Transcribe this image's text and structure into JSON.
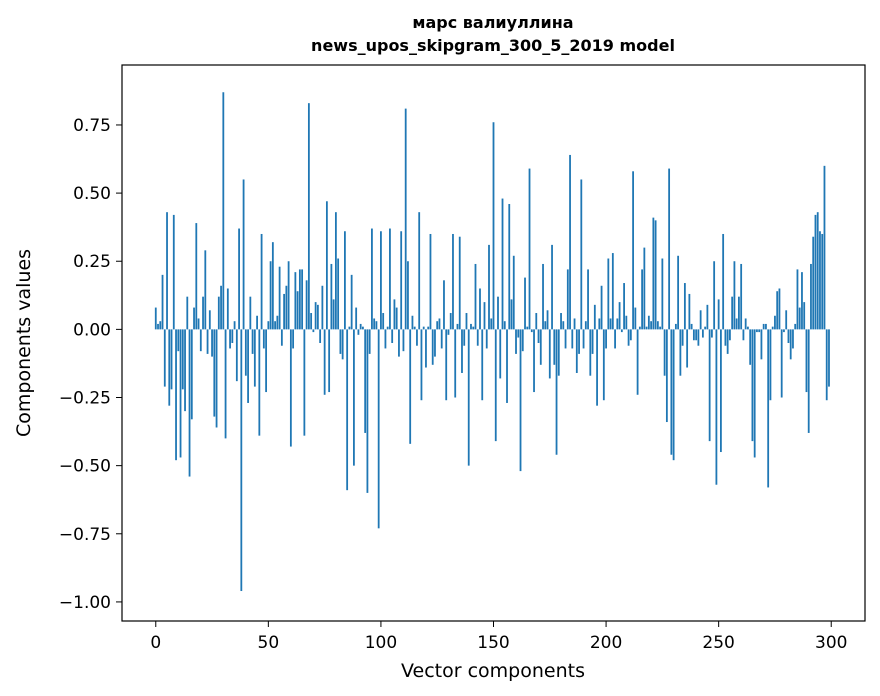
{
  "chart_data": {
    "type": "bar",
    "title_line1": "марс валиуллина",
    "title_line2": "news_upos_skipgram_300_5_2019 model",
    "xlabel": "Vector components",
    "ylabel": "Components values",
    "xlim": [
      -15,
      315
    ],
    "ylim": [
      -1.07,
      0.97
    ],
    "xticks": [
      0,
      50,
      100,
      150,
      200,
      250,
      300
    ],
    "xtick_labels": [
      "0",
      "50",
      "100",
      "150",
      "200",
      "250",
      "300"
    ],
    "yticks": [
      -1.0,
      -0.75,
      -0.5,
      -0.25,
      0.0,
      0.25,
      0.5,
      0.75
    ],
    "ytick_labels": [
      "−1.00",
      "−0.75",
      "−0.50",
      "−0.25",
      "0.00",
      "0.25",
      "0.50",
      "0.75"
    ],
    "bar_color": "#1f77b4",
    "values": [
      0.08,
      0.02,
      0.03,
      0.2,
      -0.21,
      0.43,
      -0.28,
      -0.22,
      0.42,
      -0.48,
      -0.08,
      -0.47,
      -0.22,
      -0.3,
      0.12,
      -0.54,
      -0.33,
      0.08,
      0.39,
      0.04,
      -0.08,
      0.12,
      0.29,
      -0.09,
      0.07,
      -0.1,
      -0.32,
      -0.36,
      0.12,
      0.16,
      0.87,
      -0.4,
      0.15,
      -0.07,
      -0.05,
      0.03,
      -0.19,
      0.37,
      -0.96,
      0.55,
      -0.17,
      -0.27,
      0.12,
      -0.09,
      -0.21,
      0.05,
      -0.39,
      0.35,
      -0.07,
      -0.23,
      0.03,
      0.25,
      0.32,
      0.03,
      0.05,
      0.23,
      -0.06,
      0.13,
      0.16,
      0.25,
      -0.43,
      -0.07,
      0.21,
      0.14,
      0.22,
      0.22,
      -0.39,
      0.18,
      0.83,
      0.06,
      -0.01,
      0.1,
      0.09,
      -0.05,
      0.16,
      -0.24,
      0.47,
      -0.23,
      0.24,
      0.11,
      0.43,
      0.26,
      -0.09,
      -0.11,
      0.36,
      -0.59,
      0.01,
      0.2,
      -0.5,
      0.08,
      -0.02,
      0.02,
      0.01,
      -0.38,
      -0.6,
      -0.09,
      0.37,
      0.04,
      0.03,
      -0.73,
      0.36,
      0.06,
      -0.07,
      0.01,
      0.37,
      -0.05,
      0.11,
      0.08,
      -0.1,
      0.36,
      -0.08,
      0.81,
      0.25,
      -0.42,
      0.05,
      0.01,
      -0.06,
      0.43,
      -0.26,
      0.01,
      -0.14,
      0.01,
      0.35,
      -0.13,
      -0.1,
      0.03,
      0.04,
      -0.07,
      0.18,
      -0.26,
      -0.02,
      0.06,
      0.35,
      -0.25,
      0.02,
      0.34,
      -0.16,
      -0.06,
      0.06,
      -0.5,
      0.02,
      0.01,
      0.24,
      -0.06,
      0.15,
      -0.26,
      0.1,
      -0.07,
      0.31,
      0.04,
      0.76,
      -0.41,
      0.12,
      -0.18,
      0.48,
      0.03,
      -0.27,
      0.46,
      0.11,
      0.27,
      -0.09,
      -0.03,
      -0.52,
      -0.08,
      0.19,
      0.01,
      0.59,
      -0.01,
      -0.23,
      0.06,
      -0.05,
      -0.13,
      0.24,
      0.03,
      0.07,
      -0.18,
      0.31,
      -0.13,
      -0.46,
      -0.17,
      0.06,
      0.03,
      -0.07,
      0.22,
      0.64,
      -0.07,
      0.04,
      -0.16,
      -0.09,
      0.55,
      -0.07,
      0.03,
      0.22,
      -0.17,
      -0.09,
      0.09,
      -0.28,
      0.04,
      0.16,
      -0.26,
      -0.07,
      0.26,
      0.04,
      0.28,
      -0.07,
      0.04,
      0.1,
      -0.01,
      0.17,
      0.05,
      -0.06,
      -0.04,
      0.58,
      0.08,
      -0.24,
      0.01,
      0.22,
      0.3,
      0.01,
      0.05,
      0.03,
      0.41,
      0.4,
      0.03,
      0.01,
      0.26,
      -0.17,
      -0.34,
      0.59,
      -0.46,
      -0.48,
      0.02,
      0.27,
      -0.17,
      -0.06,
      0.17,
      -0.14,
      0.13,
      0.02,
      -0.04,
      -0.04,
      -0.06,
      0.07,
      -0.03,
      0.01,
      0.09,
      -0.41,
      -0.03,
      0.25,
      -0.57,
      0.11,
      -0.45,
      0.35,
      -0.06,
      -0.09,
      -0.04,
      0.12,
      0.25,
      0.04,
      0.12,
      0.24,
      -0.04,
      0.04,
      0.01,
      -0.13,
      -0.41,
      -0.47,
      -0.01,
      -0.01,
      -0.11,
      0.02,
      0.02,
      -0.58,
      -0.26,
      0.01,
      0.05,
      0.14,
      0.15,
      -0.25,
      -0.01,
      0.07,
      -0.05,
      -0.11,
      -0.07,
      0.02,
      0.22,
      0.08,
      0.21,
      0.1,
      -0.23,
      -0.38,
      0.24,
      0.34,
      0.42,
      0.43,
      0.36,
      0.35,
      0.6,
      -0.26,
      -0.21
    ]
  }
}
